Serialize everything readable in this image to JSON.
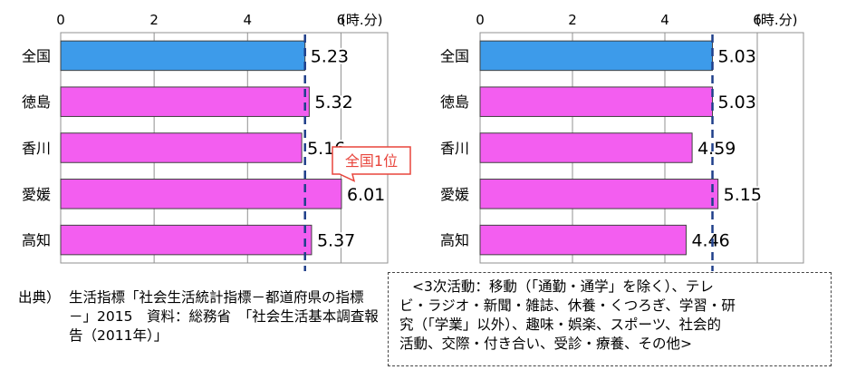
{
  "charts": [
    {
      "unit": "(時.分)",
      "ticks": [
        0,
        2,
        4,
        6
      ],
      "xlim": [
        0,
        7
      ],
      "categories": [
        "全国",
        "徳島",
        "香川",
        "愛媛",
        "高知"
      ],
      "values": [
        5.23,
        5.32,
        5.16,
        6.01,
        5.37
      ],
      "value_labels": [
        "5.23",
        "5.32",
        "5.16",
        "6.01",
        "5.37"
      ],
      "reference_line": 5.23,
      "callout": "全国1位",
      "callout_category": "愛媛"
    },
    {
      "unit": "(時.分)",
      "ticks": [
        0,
        2,
        4,
        6
      ],
      "xlim": [
        0,
        7
      ],
      "categories": [
        "全国",
        "徳島",
        "香川",
        "愛媛",
        "高知"
      ],
      "values": [
        5.03,
        5.03,
        4.59,
        5.15,
        4.46
      ],
      "value_labels": [
        "5.03",
        "5.03",
        "4.59",
        "5.15",
        "4.46"
      ],
      "reference_line": 5.03
    }
  ],
  "colors": {
    "national": "#3d9bea",
    "prefecture": "#f35ef0",
    "edge": "#404040",
    "reference": "#1f3f8a",
    "callout": "#e8453c"
  },
  "source": {
    "lead": "出典）",
    "text": "生活指標「社会生活統計指標－都道府県の指標－」2015　資料：総務省　「社会生活基本調査報告（2011年）」"
  },
  "note": {
    "lines": [
      "<3次活動：移動（「通勤・通学」を除く）、テレ",
      "ビ・ラジオ・新聞・雑誌、休養・くつろぎ、学習・研",
      "究（「学業」以外）、趣味・娯楽、スポーツ、社会的",
      "活動、交際・付き合い、受診・療養、その他>"
    ]
  }
}
